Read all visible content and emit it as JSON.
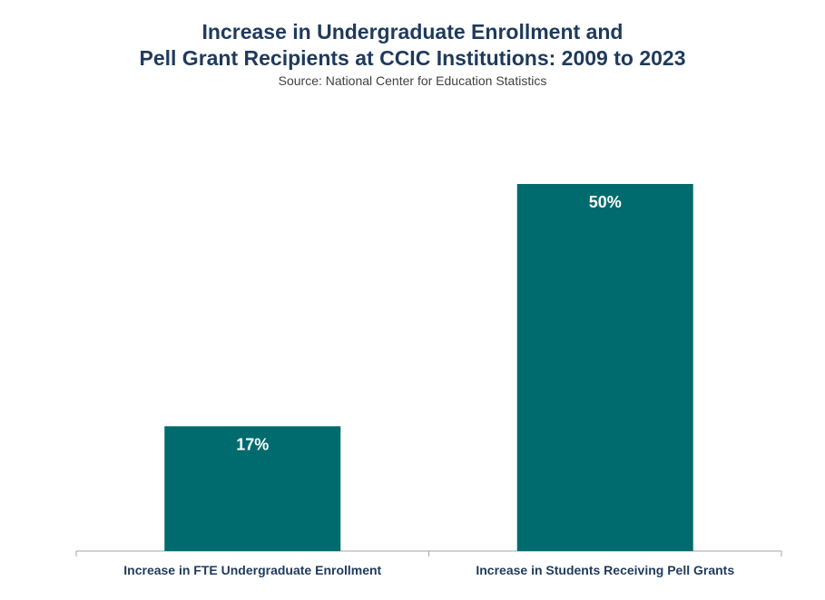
{
  "title_lines": [
    "Increase in Undergraduate Enrollment and",
    "Pell Grant Recipients at CCIC Institutions: 2009 to 2023"
  ],
  "subtitle": "Source: National Center for Education Statistics",
  "colors": {
    "bar": "#006b6e",
    "title": "#1f3a5c",
    "axis": "#a6a6a6"
  },
  "chart_data": {
    "type": "bar",
    "title": "Increase in Undergraduate Enrollment and Pell Grant Recipients at CCIC Institutions: 2009 to 2023",
    "subtitle": "Source: National Center for Education Statistics",
    "categories": [
      "Increase in FTE Undergraduate Enrollment",
      "Increase in Students Receiving Pell Grants"
    ],
    "values": [
      17,
      50
    ],
    "data_labels": [
      "17%",
      "50%"
    ],
    "ylim": [
      0,
      60
    ],
    "grid": false,
    "legend": "none"
  }
}
